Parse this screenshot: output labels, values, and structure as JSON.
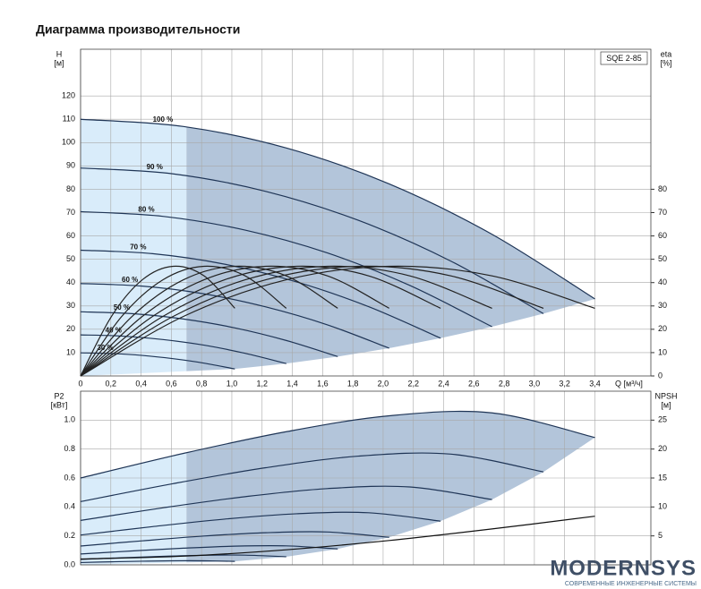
{
  "chart_data": [
    {
      "type": "line",
      "title": "Диаграмма производительности",
      "model": "SQE 2-85",
      "y_label": "H",
      "y_unit": "[м]",
      "y2_label": "eta",
      "y2_unit": "[%]",
      "x_label": "Q [м³/ч]",
      "xlim": [
        0,
        3.77
      ],
      "xticks": [
        0,
        {
          "value": 0.2,
          "label": "0,2"
        },
        {
          "value": 0.4,
          "label": "0,4"
        },
        {
          "value": 0.6,
          "label": "0,6"
        },
        {
          "value": 0.8,
          "label": "0,8"
        },
        {
          "value": 1.0,
          "label": "1,0"
        },
        {
          "value": 1.2,
          "label": "1,2"
        },
        {
          "value": 1.4,
          "label": "1,4"
        },
        {
          "value": 1.6,
          "label": "1,6"
        },
        {
          "value": 1.8,
          "label": "1,8"
        },
        {
          "value": 2.0,
          "label": "2,0"
        },
        {
          "value": 2.2,
          "label": "2,2"
        },
        {
          "value": 2.4,
          "label": "2,4"
        },
        {
          "value": 2.6,
          "label": "2,6"
        },
        {
          "value": 2.8,
          "label": "2,8"
        },
        {
          "value": 3.0,
          "label": "3,0"
        },
        {
          "value": 3.2,
          "label": "3,2"
        },
        {
          "value": 3.4,
          "label": "3,4"
        }
      ],
      "xtick_labels": true,
      "ylim": [
        0,
        140
      ],
      "yticks": [
        10,
        20,
        30,
        40,
        50,
        60,
        70,
        80,
        90,
        100,
        110,
        120
      ],
      "y2lim": [
        0,
        140
      ],
      "y2ticks": [
        0,
        10,
        20,
        30,
        40,
        50,
        60,
        70,
        80
      ],
      "grid": true,
      "range_start": 0.7,
      "range_color": "#d9ecfa",
      "area_color": "#b3c5da",
      "series": [
        {
          "name": "100 %",
          "color": "#1f3556",
          "x": [
            0,
            0.68,
            1.36,
            2.04,
            2.72,
            3.4
          ],
          "values": [
            110,
            106.9,
            97.7,
            82.3,
            60.7,
            33.0
          ]
        },
        {
          "name": "90 %",
          "color": "#1f3556",
          "x": [
            0,
            0.612,
            1.224,
            1.836,
            2.448,
            3.06
          ],
          "values": [
            89.1,
            86.6,
            79.1,
            66.7,
            49.2,
            26.7
          ]
        },
        {
          "name": "80 %",
          "color": "#1f3556",
          "x": [
            0,
            0.544,
            1.088,
            1.632,
            2.176,
            2.72
          ],
          "values": [
            70.4,
            68.4,
            62.5,
            52.7,
            38.8,
            21.1
          ]
        },
        {
          "name": "70 %",
          "color": "#1f3556",
          "x": [
            0,
            0.476,
            0.952,
            1.428,
            1.904,
            2.38
          ],
          "values": [
            53.9,
            52.4,
            47.9,
            40.3,
            29.7,
            16.2
          ]
        },
        {
          "name": "60 %",
          "color": "#1f3556",
          "x": [
            0,
            0.408,
            0.816,
            1.224,
            1.632,
            2.04
          ],
          "values": [
            39.6,
            38.5,
            35.2,
            29.6,
            21.9,
            11.9
          ]
        },
        {
          "name": "50 %",
          "color": "#1f3556",
          "x": [
            0,
            0.34,
            0.68,
            1.02,
            1.36,
            1.7
          ],
          "values": [
            27.5,
            26.7,
            24.4,
            20.6,
            15.2,
            8.3
          ]
        },
        {
          "name": "40 %",
          "color": "#1f3556",
          "x": [
            0,
            0.272,
            0.544,
            0.816,
            1.088,
            1.36
          ],
          "values": [
            17.6,
            17.1,
            15.6,
            13.2,
            9.7,
            5.3
          ]
        },
        {
          "name": "30 %",
          "color": "#1f3556",
          "x": [
            0,
            0.204,
            0.408,
            0.612,
            0.816,
            1.02
          ],
          "values": [
            9.9,
            9.6,
            8.8,
            7.4,
            5.5,
            3.0
          ]
        },
        {
          "axis": "y2",
          "color": "#222222",
          "x": [
            0,
            0.68,
            1.36,
            2.04,
            2.72,
            3.4
          ],
          "values": [
            0,
            25.5,
            41.2,
            47,
            42.9,
            29
          ]
        },
        {
          "axis": "y2",
          "color": "#222222",
          "x": [
            0,
            0.612,
            1.224,
            1.836,
            2.448,
            3.06
          ],
          "values": [
            0,
            25.5,
            41.2,
            47,
            42.9,
            29
          ]
        },
        {
          "axis": "y2",
          "color": "#222222",
          "x": [
            0,
            0.544,
            1.088,
            1.632,
            2.176,
            2.72
          ],
          "values": [
            0,
            25.5,
            41.2,
            47,
            42.9,
            29
          ]
        },
        {
          "axis": "y2",
          "color": "#222222",
          "x": [
            0,
            0.476,
            0.952,
            1.428,
            1.904,
            2.38
          ],
          "values": [
            0,
            25.5,
            41.2,
            47,
            42.9,
            29
          ]
        },
        {
          "axis": "y2",
          "color": "#222222",
          "x": [
            0,
            0.408,
            0.816,
            1.224,
            1.632,
            2.04
          ],
          "values": [
            0,
            25.5,
            41.2,
            47,
            42.9,
            29
          ]
        },
        {
          "axis": "y2",
          "color": "#222222",
          "x": [
            0,
            0.34,
            0.68,
            1.02,
            1.36,
            1.7
          ],
          "values": [
            0,
            25.5,
            41.2,
            47,
            42.9,
            29
          ]
        },
        {
          "axis": "y2",
          "color": "#222222",
          "x": [
            0,
            0.272,
            0.544,
            0.816,
            1.088,
            1.36
          ],
          "values": [
            0,
            25.5,
            41.2,
            47,
            42.9,
            29
          ]
        },
        {
          "axis": "y2",
          "color": "#222222",
          "x": [
            0,
            0.204,
            0.408,
            0.612,
            0.816,
            1.02
          ],
          "values": [
            0,
            25.5,
            41.2,
            47,
            42.9,
            29
          ]
        }
      ]
    },
    {
      "type": "line",
      "y_label": "P2",
      "y_unit": "[кВт]",
      "y2_label": "NPSH",
      "y2_unit": "[м]",
      "xlim": [
        0,
        3.77
      ],
      "xticks": [
        0,
        0.2,
        0.4,
        0.6,
        0.8,
        1.0,
        1.2,
        1.4,
        1.6,
        1.8,
        2.0,
        2.2,
        2.4,
        2.6,
        2.8,
        3.0,
        3.2,
        3.4
      ],
      "xtick_labels": false,
      "ylim": [
        0,
        1.2
      ],
      "yticks": [
        {
          "value": 0,
          "label": "0.0"
        },
        0.2,
        0.4,
        0.6,
        0.8,
        {
          "value": 1,
          "label": "1.0"
        }
      ],
      "y2lim": [
        0,
        30
      ],
      "y2ticks": [
        5,
        10,
        15,
        20,
        25
      ],
      "grid": true,
      "range_start": 0.7,
      "range_color": "#d9ecfa",
      "area_color": "#b3c5da",
      "series": [
        {
          "color": "#1f3556",
          "x": [
            0,
            0.68,
            1.36,
            2.04,
            2.72,
            3.4
          ],
          "values": [
            0.6,
            0.77,
            0.92,
            1.03,
            1.05,
            0.88
          ]
        },
        {
          "color": "#1f3556",
          "x": [
            0,
            0.612,
            1.224,
            1.836,
            2.448,
            3.06
          ],
          "values": [
            0.437,
            0.561,
            0.671,
            0.751,
            0.765,
            0.642
          ]
        },
        {
          "color": "#1f3556",
          "x": [
            0,
            0.544,
            1.088,
            1.632,
            2.176,
            2.72
          ],
          "values": [
            0.307,
            0.394,
            0.471,
            0.527,
            0.538,
            0.451
          ]
        },
        {
          "color": "#1f3556",
          "x": [
            0,
            0.476,
            0.952,
            1.428,
            1.904,
            2.38
          ],
          "values": [
            0.206,
            0.264,
            0.316,
            0.353,
            0.36,
            0.302
          ]
        },
        {
          "color": "#1f3556",
          "x": [
            0,
            0.408,
            0.816,
            1.224,
            1.632,
            2.04
          ],
          "values": [
            0.13,
            0.166,
            0.199,
            0.222,
            0.227,
            0.19
          ]
        },
        {
          "color": "#1f3556",
          "x": [
            0,
            0.34,
            0.68,
            1.02,
            1.36,
            1.7
          ],
          "values": [
            0.075,
            0.096,
            0.115,
            0.129,
            0.131,
            0.11
          ]
        },
        {
          "color": "#1f3556",
          "x": [
            0,
            0.272,
            0.544,
            0.816,
            1.088,
            1.36
          ],
          "values": [
            0.038,
            0.049,
            0.059,
            0.066,
            0.067,
            0.056
          ]
        },
        {
          "color": "#1f3556",
          "x": [
            0,
            0.204,
            0.408,
            0.612,
            0.816,
            1.02
          ],
          "values": [
            0.016,
            0.021,
            0.025,
            0.028,
            0.028,
            0.024
          ]
        },
        {
          "axis": "y2",
          "color": "#111111",
          "x": [
            0,
            0.68,
            1.36,
            2.04,
            2.72,
            3.4
          ],
          "values": [
            1.0,
            1.5,
            2.6,
            4.2,
            6.2,
            8.4
          ]
        }
      ]
    }
  ],
  "watermark": {
    "brand": "MODERNSYS",
    "tagline": "СОВРЕМЕННЫЕ ИНЖЕНЕРНЫЕ СИСТЕМЫ"
  }
}
